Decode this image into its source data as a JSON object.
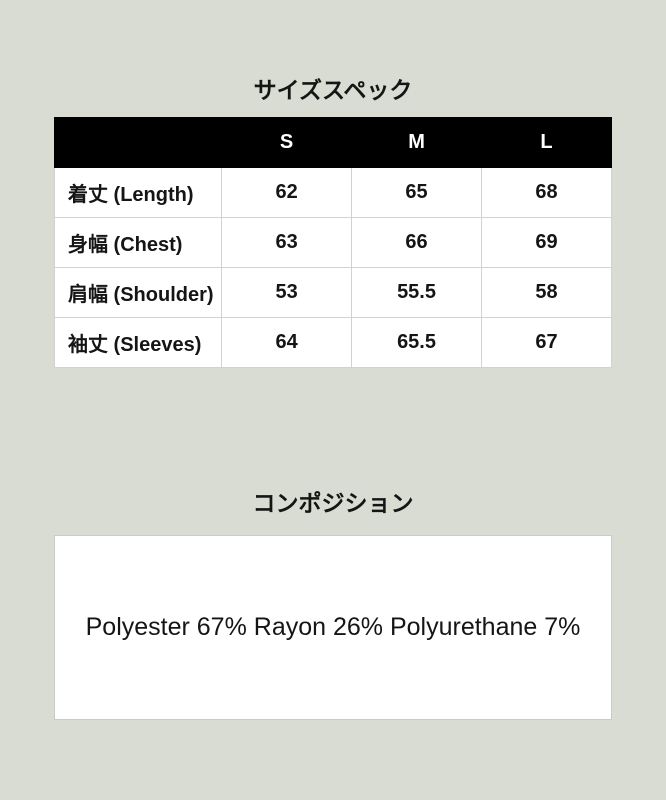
{
  "page": {
    "background_color": "#d9dcd3"
  },
  "size_section": {
    "title": "サイズスペック",
    "table": {
      "header_bg_color": "#000000",
      "header_text_color": "#ffffff",
      "columns": [
        "S",
        "M",
        "L"
      ],
      "rows": [
        {
          "label": "着丈 (Length)",
          "values": [
            "62",
            "65",
            "68"
          ]
        },
        {
          "label": "身幅 (Chest)",
          "values": [
            "63",
            "66",
            "69"
          ]
        },
        {
          "label": "肩幅 (Shoulder)",
          "values": [
            "53",
            "55.5",
            "58"
          ]
        },
        {
          "label": "袖丈 (Sleeves)",
          "values": [
            "64",
            "65.5",
            "67"
          ]
        }
      ]
    }
  },
  "composition_section": {
    "title": "コンポジション",
    "text": "Polyester 67% Rayon 26% Polyurethane 7%"
  }
}
